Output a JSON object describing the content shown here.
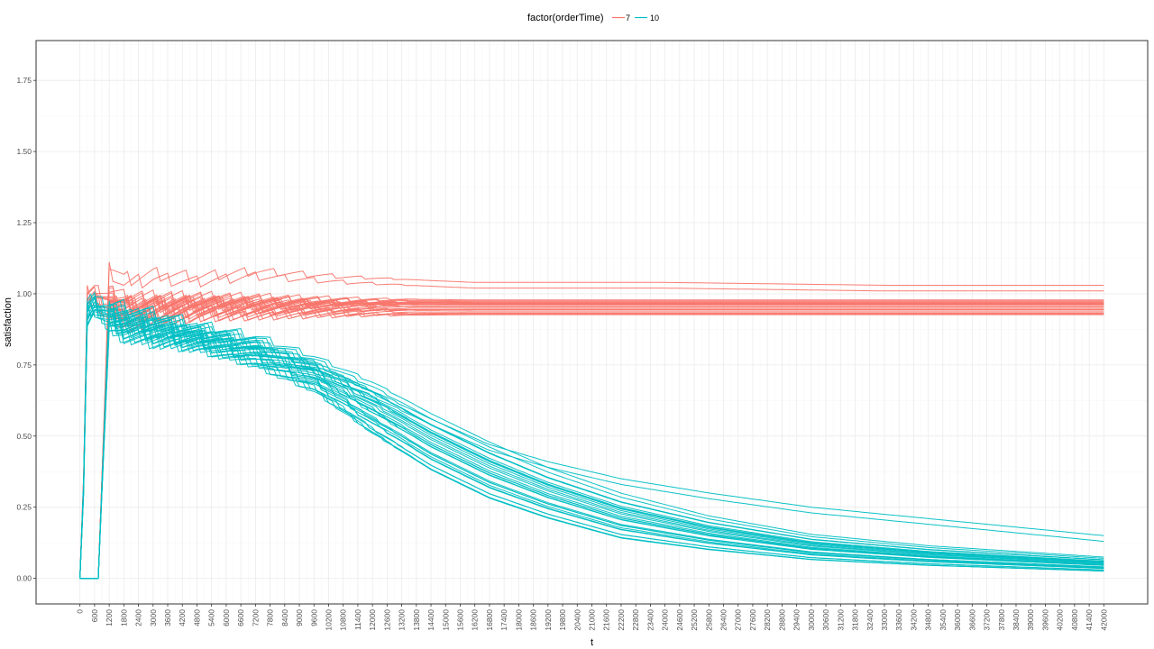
{
  "chart_data": {
    "type": "line",
    "title": "",
    "xlabel": "t",
    "ylabel": "satisfaction",
    "xlim": [
      -1800,
      43800
    ],
    "ylim": [
      -0.09,
      1.89
    ],
    "x_ticks": [
      0,
      600,
      1200,
      1800,
      2400,
      3000,
      3600,
      4200,
      4800,
      5400,
      6000,
      6600,
      7200,
      7800,
      8400,
      9000,
      9600,
      10200,
      10800,
      11400,
      12000,
      12600,
      13200,
      13800,
      14400,
      15000,
      15600,
      16200,
      16800,
      17400,
      18000,
      18600,
      19200,
      19800,
      20400,
      21000,
      21600,
      22200,
      22800,
      23400,
      24000,
      24600,
      25200,
      25800,
      26400,
      27000,
      27600,
      28200,
      28800,
      29400,
      30000,
      30600,
      31200,
      31800,
      32400,
      33000,
      33600,
      34200,
      34800,
      35400,
      36000,
      36600,
      37200,
      37800,
      38400,
      39000,
      39600,
      40200,
      40800,
      41400,
      42000
    ],
    "y_ticks": [
      "0.00",
      "0.25",
      "0.50",
      "0.75",
      "1.00",
      "1.25",
      "1.50",
      "1.75"
    ],
    "grid": true,
    "legend": {
      "title": "factor(orderTime)",
      "position": "top",
      "entries": [
        {
          "label": "7",
          "color": "#F8766D"
        },
        {
          "label": "10",
          "color": "#00BFC4"
        }
      ]
    },
    "series": [
      {
        "group": "7",
        "color": "#F8766D",
        "x": [
          0,
          300,
          600,
          1200,
          1800,
          3000,
          4800,
          7200,
          10800,
          16200,
          24000,
          33000,
          42000
        ],
        "y_center": [
          0,
          0.99,
          1.0,
          0.96,
          0.93,
          0.94,
          0.95,
          0.95,
          0.95,
          0.95,
          0.95,
          0.95,
          0.95
        ],
        "y_spread": [
          0,
          0.03,
          0.03,
          0.05,
          0.06,
          0.05,
          0.04,
          0.04,
          0.035,
          0.03,
          0.03,
          0.03,
          0.03
        ],
        "outlier_y": [
          0,
          1.0,
          1.01,
          1.1,
          1.05,
          1.07,
          1.06,
          1.08,
          1.06,
          1.04,
          1.04,
          1.03,
          1.03
        ]
      },
      {
        "group": "10",
        "color": "#00BFC4",
        "x": [
          0,
          300,
          600,
          1200,
          1800,
          3000,
          4800,
          7200,
          9600,
          12000,
          14400,
          16800,
          19200,
          22200,
          25800,
          30000,
          34800,
          38400,
          42000
        ],
        "y_center": [
          0,
          0.93,
          0.96,
          0.92,
          0.9,
          0.88,
          0.85,
          0.8,
          0.72,
          0.6,
          0.48,
          0.38,
          0.3,
          0.22,
          0.16,
          0.11,
          0.08,
          0.065,
          0.05
        ],
        "y_spread": [
          0,
          0.03,
          0.02,
          0.04,
          0.05,
          0.05,
          0.04,
          0.05,
          0.06,
          0.09,
          0.1,
          0.1,
          0.09,
          0.08,
          0.06,
          0.045,
          0.035,
          0.03,
          0.025
        ],
        "outlier_y": [
          0,
          0.97,
          0.98,
          0.95,
          0.93,
          0.9,
          0.87,
          0.82,
          0.75,
          0.66,
          0.56,
          0.47,
          0.41,
          0.35,
          0.3,
          0.25,
          0.21,
          0.18,
          0.15
        ]
      }
    ],
    "lines_per_group": 30
  }
}
